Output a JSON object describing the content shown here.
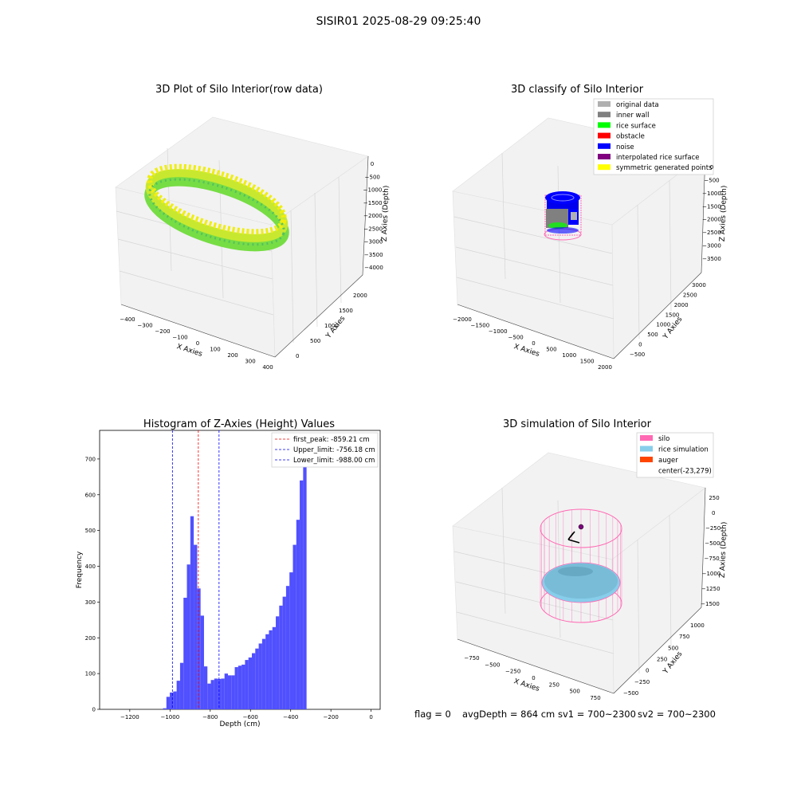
{
  "suptitle": "SISIR01 2025-08-29 09:25:40",
  "panel1": {
    "title": "3D Plot of Silo Interior(row data)",
    "xlabel": "X Axies",
    "ylabel": "Y Axies",
    "zlabel": "Z Axies (Depth)",
    "xticks": [
      "−400",
      "−300",
      "−200",
      "−100",
      "0",
      "100",
      "200",
      "300",
      "400"
    ],
    "yticks": [
      "0",
      "500",
      "1000",
      "1500",
      "2000"
    ],
    "zticks": [
      "0",
      "−500",
      "−1000",
      "−1500",
      "−2000",
      "−2500",
      "−3000",
      "−3500",
      "−4000"
    ]
  },
  "panel2": {
    "title": "3D classify of Silo Interior",
    "xlabel": "X Axies",
    "ylabel": "Y Axies",
    "zlabel": "Z Axies (Depth)",
    "xticks": [
      "−2000",
      "−1500",
      "−1000",
      "−500",
      "0",
      "500",
      "1000",
      "1500",
      "2000"
    ],
    "yticks": [
      "−500",
      "0",
      "500",
      "1000",
      "1500",
      "2000",
      "2500",
      "3000"
    ],
    "zticks": [
      "0",
      "−500",
      "−1000",
      "−1500",
      "−2000",
      "−2500",
      "−3000",
      "−3500"
    ],
    "legend": [
      {
        "label": "original data",
        "color": "#b0b0b0"
      },
      {
        "label": "inner wall",
        "color": "#808080"
      },
      {
        "label": "rice surface",
        "color": "#00ff00"
      },
      {
        "label": "obstacle",
        "color": "#ff0000"
      },
      {
        "label": "noise",
        "color": "#0000ff"
      },
      {
        "label": "interpolated rice surface",
        "color": "#800080"
      },
      {
        "label": "symmetric generated points",
        "color": "#ffff00"
      }
    ]
  },
  "panel4": {
    "title": "3D simulation of Silo Interior",
    "xlabel": "X Axies",
    "ylabel": "Y Axies",
    "zlabel": "Z Axies (Depth)",
    "xticks": [
      "−750",
      "−500",
      "−250",
      "0",
      "250",
      "500",
      "750"
    ],
    "yticks": [
      "−500",
      "−250",
      "0",
      "250",
      "500",
      "750",
      "1000"
    ],
    "zticks": [
      "250",
      "0",
      "−250",
      "−500",
      "−750",
      "−1000",
      "−1250",
      "−1500"
    ],
    "legend": [
      {
        "label": "silo",
        "color": "#ff69b4"
      },
      {
        "label": "rice simulation",
        "color": "#87ceeb"
      },
      {
        "label": "auger",
        "color": "#ff4500"
      },
      {
        "label": "center(-23,279)",
        "color": ""
      }
    ]
  },
  "status": {
    "flag": "flag = 0",
    "avg": "avgDepth = 864 cm",
    "sv1": "sv1 = 700~2300",
    "sv2": "sv2 = 700~2300"
  },
  "colors": {
    "hist_bar": "#5050ff",
    "peak_line": "#ff0000",
    "limit_line": "#0000ff"
  },
  "chart_data": {
    "type": "bar",
    "title": "Histogram of Z-Axies (Height) Values",
    "xlabel": "Depth (cm)",
    "ylabel": "Frequency",
    "xlim": [
      -1350,
      45
    ],
    "ylim": [
      0,
      780
    ],
    "xticks": [
      -1200,
      -1000,
      -800,
      -600,
      -400,
      -200,
      0
    ],
    "yticks": [
      0,
      100,
      200,
      300,
      400,
      500,
      600,
      700
    ],
    "bin_width": 17,
    "bin_start": -1035,
    "values": [
      3,
      35,
      47,
      50,
      80,
      130,
      312,
      405,
      540,
      460,
      338,
      262,
      120,
      72,
      82,
      86,
      85,
      86,
      100,
      95,
      95,
      118,
      122,
      125,
      138,
      145,
      157,
      170,
      184,
      197,
      210,
      221,
      230,
      260,
      290,
      315,
      345,
      383,
      460,
      530,
      640,
      738
    ],
    "vlines": [
      {
        "label": "first_peak: -859.21 cm",
        "x": -859.21,
        "color": "#ff0000"
      },
      {
        "label": "Upper_limit: -756.18 cm",
        "x": -756.18,
        "color": "#0000ff"
      },
      {
        "label": "Lower_limit: -988.00 cm",
        "x": -988.0,
        "color": "#0000ff"
      }
    ]
  }
}
